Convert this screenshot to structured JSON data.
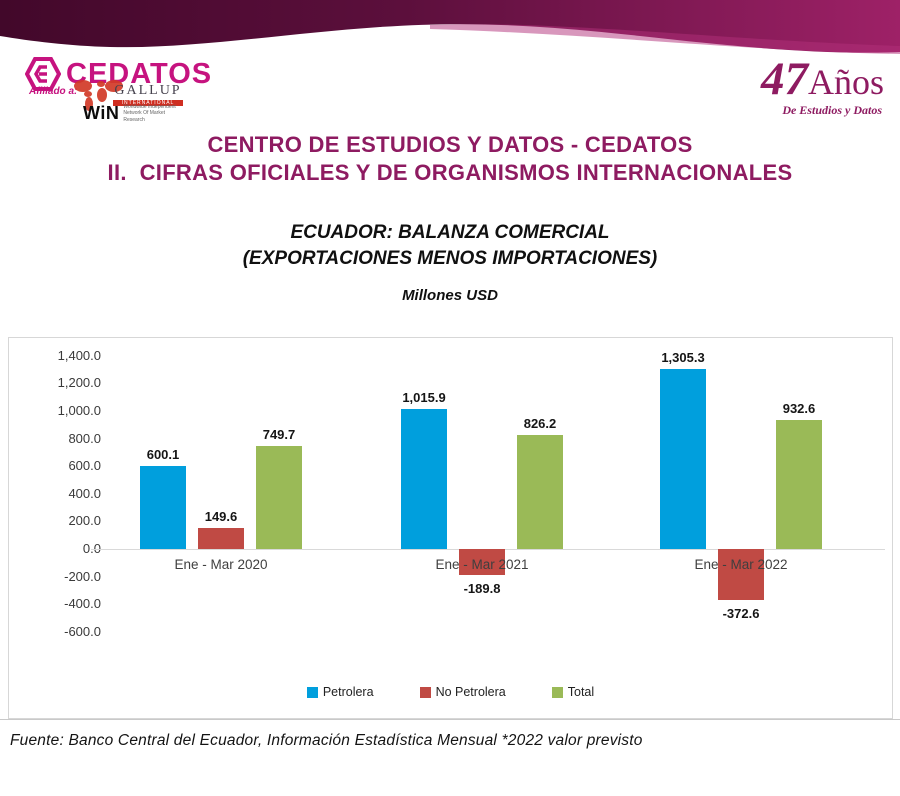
{
  "header": {
    "logo": {
      "brand": "CEDATOS",
      "affiliate_label": "Afiliado a:",
      "gallup": "GALLUP",
      "gallup_sub": "INTERNATIONAL",
      "win": "WiN",
      "win_sub": "Worldwide Independent Network Of Market Research"
    },
    "anniversary": {
      "number": "47",
      "word": "Años",
      "subtitle": "De Estudios y Datos"
    }
  },
  "titles": {
    "line1": "CENTRO DE ESTUDIOS Y DATOS - CEDATOS",
    "line2": "II.  CIFRAS OFICIALES Y DE ORGANISMOS INTERNACIONALES"
  },
  "chart_heading": {
    "line1": "ECUADOR: BALANZA COMERCIAL",
    "line2": "(EXPORTACIONES MENOS IMPORTACIONES)",
    "units": "Millones USD"
  },
  "chart_data": {
    "type": "bar",
    "title": "ECUADOR: BALANZA COMERCIAL (EXPORTACIONES MENOS IMPORTACIONES)",
    "units": "Millones USD",
    "categories": [
      "Ene - Mar 2020",
      "Ene - Mar 2021",
      "Ene - Mar 2022"
    ],
    "series": [
      {
        "name": "Petrolera",
        "color": "#009fdd",
        "values": [
          600.1,
          1015.9,
          1305.3
        ],
        "labels": [
          "600.1",
          "1,015.9",
          "1,305.3"
        ]
      },
      {
        "name": "No Petrolera",
        "color": "#c04a44",
        "values": [
          149.6,
          -189.8,
          -372.6
        ],
        "labels": [
          "149.6",
          "-189.8",
          "-372.6"
        ]
      },
      {
        "name": "Total",
        "color": "#9aba57",
        "values": [
          749.7,
          826.2,
          932.6
        ],
        "labels": [
          "749.7",
          "826.2",
          "932.6"
        ]
      }
    ],
    "y_axis": {
      "min": -600,
      "max": 1400,
      "step": 200,
      "tick_labels": [
        "1,400.0",
        "1,200.0",
        "1,000.0",
        "800.0",
        "600.0",
        "400.0",
        "200.0",
        "0.0",
        "-200.0",
        "-400.0",
        "-600.0"
      ]
    },
    "legend_position": "bottom",
    "grid": false
  },
  "footer": {
    "source": "Fuente: Banco Central del Ecuador, Información Estadística Mensual *2022 valor previsto"
  },
  "colors": {
    "brand_magenta": "#8e1b61",
    "logo_pink": "#c6137f",
    "banner_dark": "#42082a",
    "banner_magenta": "#9e2167"
  }
}
